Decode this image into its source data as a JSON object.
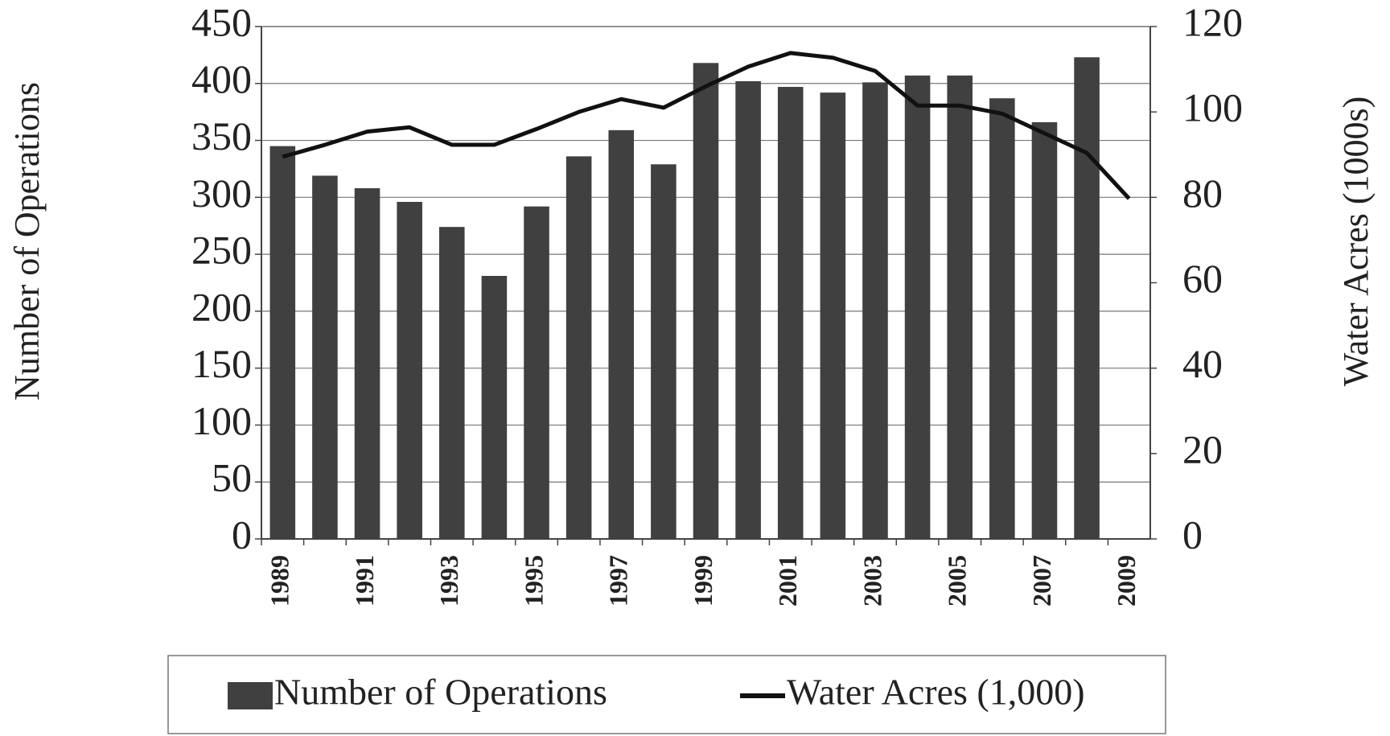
{
  "chart_data": {
    "type": "bar",
    "y_label": "Number of Operations",
    "y2_label": "Water Acres (1000s)",
    "categories": [
      "1989",
      null,
      "1991",
      null,
      "1993",
      null,
      "1995",
      null,
      "1997",
      null,
      "1999",
      null,
      "2001",
      null,
      "2003",
      null,
      "2005",
      null,
      "2007",
      null,
      "2009"
    ],
    "series": [
      {
        "name": "Number of Operations",
        "type": "bar",
        "color": "#404040",
        "values": [
          345,
          319,
          308,
          296,
          274,
          231,
          292,
          336,
          359,
          329,
          418,
          402,
          397,
          392,
          401,
          407,
          407,
          387,
          366,
          423,
          null
        ]
      },
      {
        "name": "Water Acres (1,000)",
        "type": "line",
        "axis": "y2",
        "color": "#111111",
        "values": [
          89.5,
          92.3,
          95.4,
          96.4,
          92.3,
          92.3,
          96,
          100,
          103,
          101,
          106,
          110.6,
          113.8,
          112.7,
          109.6,
          101.5,
          101.5,
          99.6,
          95,
          90.4,
          79.7
        ]
      }
    ],
    "ylim": [
      0,
      450
    ],
    "yticks": [
      0,
      50,
      100,
      150,
      200,
      250,
      300,
      350,
      400,
      450
    ],
    "y2lim": [
      0,
      120
    ],
    "y2ticks": [
      0,
      20,
      40,
      60,
      80,
      100,
      120
    ],
    "grid": true
  }
}
